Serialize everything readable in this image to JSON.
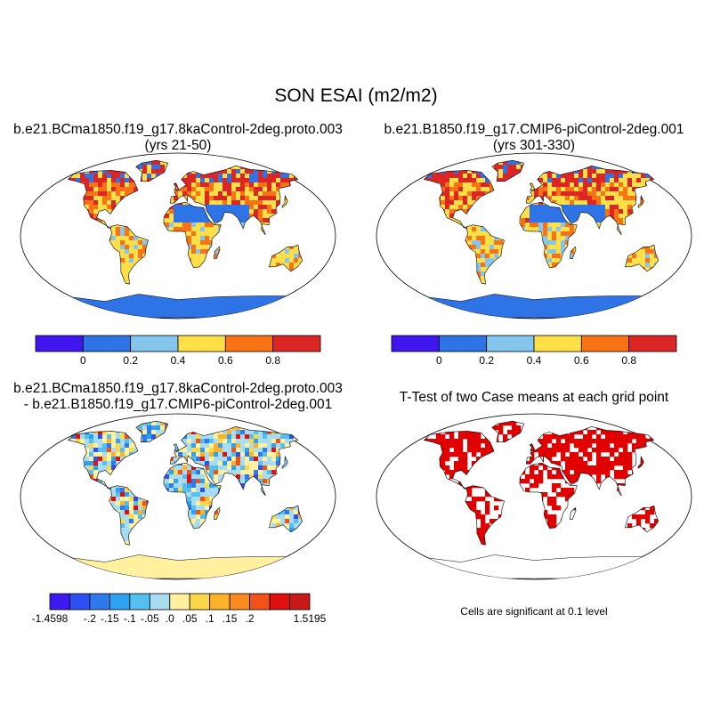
{
  "figure": {
    "title": "SON ESAI (m2/m2)",
    "panels": [
      {
        "id": "p1",
        "title_line1": "b.e21.BCma1850.f19_g17.8kaControl-2deg.proto.003",
        "title_line2": "(yrs 21-50)",
        "type": "map-field"
      },
      {
        "id": "p2",
        "title_line1": "b.e21.B1850.f19_g17.CMIP6-piControl-2deg.001",
        "title_line2": "(yrs 301-330)",
        "type": "map-field"
      },
      {
        "id": "p3",
        "title_line1": "b.e21.BCma1850.f19_g17.8kaControl-2deg.proto.003",
        "title_line2": "- b.e21.B1850.f19_g17.CMIP6-piControl-2deg.001",
        "type": "map-difference"
      },
      {
        "id": "p4",
        "title_line1": "T-Test of two Case means at each grid point",
        "type": "map-significance",
        "note": "Cells are significant at 0.1 level",
        "significant_color": "#e00000"
      }
    ]
  },
  "colorbars": {
    "field": {
      "colors": [
        "#3f17ee",
        "#2f74e6",
        "#84c6ee",
        "#fde047",
        "#f97316",
        "#dc2626"
      ],
      "labels": [
        "0",
        "0.2",
        "0.4",
        "0.6",
        "0.8"
      ]
    },
    "difference": {
      "colors": [
        "#3d1af0",
        "#2f4ff2",
        "#2e79ec",
        "#2ea2f0",
        "#55c0f0",
        "#a8dcf0",
        "#fff1a0",
        "#fdd74a",
        "#fdb22a",
        "#f98a1e",
        "#f0521a",
        "#e01010",
        "#c81818"
      ],
      "labels": [
        "-1.4598",
        "-.2",
        "-.15",
        "-.1",
        "-.05",
        ".0",
        ".05",
        ".1",
        ".15",
        ".2",
        "1.5195"
      ]
    }
  },
  "palette": {
    "ocean": "#ffffff",
    "coast": "#000000",
    "antarctica_field": "#2f74e6",
    "antarctica_diff": "#fff1a0"
  }
}
